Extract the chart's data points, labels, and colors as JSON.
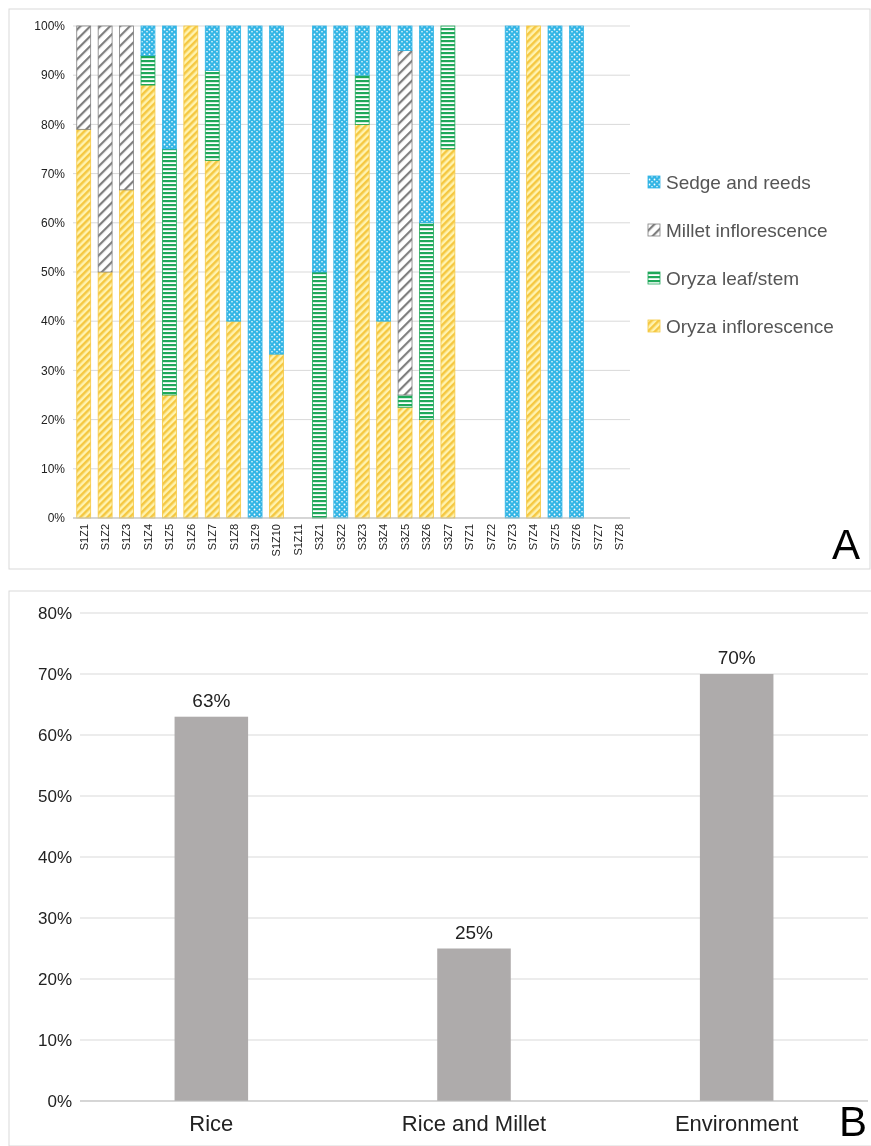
{
  "chart_data": [
    {
      "type": "bar",
      "stacked": true,
      "categories": [
        "S1Z1",
        "S1Z2",
        "S1Z3",
        "S1Z4",
        "S1Z5",
        "S1Z6",
        "S1Z7",
        "S1Z8",
        "S1Z9",
        "S1Z10",
        "S1Z11",
        "S3Z1",
        "S3Z2",
        "S3Z3",
        "S3Z4",
        "S3Z5",
        "S3Z6",
        "S3Z7",
        "S7Z1",
        "S7Z2",
        "S7Z3",
        "S7Z4",
        "S7Z5",
        "S7Z6",
        "S7Z7",
        "S7Z8"
      ],
      "series": [
        {
          "name": "Oryza inflorescence",
          "color": "#f5c842",
          "values": [
            79,
            50,
            66.7,
            88,
            25,
            100,
            72.7,
            40,
            null,
            33.3,
            null,
            null,
            null,
            80,
            40,
            22.5,
            20,
            75,
            null,
            null,
            null,
            100,
            null,
            null,
            null,
            null
          ]
        },
        {
          "name": "Oryza leaf/stem",
          "color": "#1fa85a",
          "values": [
            null,
            null,
            null,
            6,
            50,
            null,
            18.3,
            null,
            null,
            null,
            null,
            50,
            null,
            10,
            null,
            2.5,
            40,
            25,
            null,
            null,
            null,
            null,
            null,
            null,
            null,
            null
          ]
        },
        {
          "name": "Millet inflorescence",
          "color": "#7f7f7f",
          "values": [
            21,
            50,
            33.3,
            null,
            null,
            null,
            null,
            null,
            null,
            null,
            null,
            null,
            null,
            null,
            null,
            70,
            null,
            null,
            null,
            null,
            null,
            null,
            null,
            null,
            null,
            null
          ]
        },
        {
          "name": "Sedge and reeds",
          "color": "#33b5e5",
          "values": [
            null,
            null,
            null,
            6,
            25,
            null,
            9,
            60,
            100,
            66.7,
            null,
            50,
            100,
            10,
            60,
            5,
            40,
            null,
            null,
            null,
            100,
            null,
            100,
            100,
            null,
            null
          ]
        }
      ],
      "ylim": [
        0,
        100
      ],
      "yticks": [
        {
          "value": 0,
          "label": "0%"
        },
        {
          "value": 10,
          "label": "10%"
        },
        {
          "value": 20,
          "label": "20%"
        },
        {
          "value": 30,
          "label": "30%"
        },
        {
          "value": 40,
          "label": "40%"
        },
        {
          "value": 50,
          "label": "50%"
        },
        {
          "value": 60,
          "label": "60%"
        },
        {
          "value": 70,
          "label": "70%"
        },
        {
          "value": 80,
          "label": "80%"
        },
        {
          "value": 90,
          "label": "90%"
        },
        {
          "value": 100,
          "label": "100%"
        }
      ],
      "grid": "y",
      "legend": "right",
      "annotations": [
        "A"
      ]
    },
    {
      "type": "bar",
      "categories": [
        "Rice",
        "Rice and Millet",
        "Environment"
      ],
      "values": [
        63,
        25,
        70
      ],
      "color": "#aeabab",
      "value_labels": [
        "63%",
        "25%",
        "70%"
      ],
      "ylim": [
        0,
        80
      ],
      "yticks": [
        {
          "value": 0,
          "label": "0%"
        },
        {
          "value": 10,
          "label": "10%"
        },
        {
          "value": 20,
          "label": "20%"
        },
        {
          "value": 30,
          "label": "30%"
        },
        {
          "value": 40,
          "label": "40%"
        },
        {
          "value": 50,
          "label": "50%"
        },
        {
          "value": 60,
          "label": "60%"
        },
        {
          "value": 70,
          "label": "70%"
        },
        {
          "value": 80,
          "label": "80%"
        }
      ],
      "grid": "y",
      "annotations": [
        "B"
      ]
    }
  ]
}
